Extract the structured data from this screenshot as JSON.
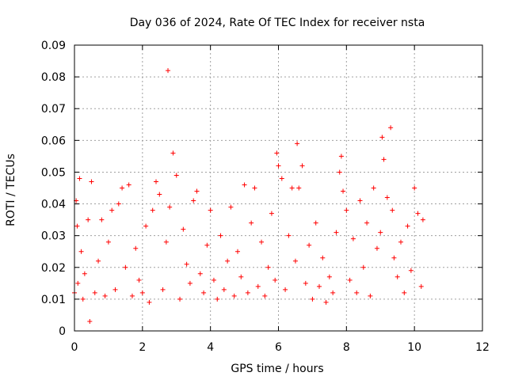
{
  "chart_data": {
    "type": "scatter",
    "title": "Day 036 of 2024, Rate Of TEC Index for receiver nsta",
    "xlabel": "GPS time / hours",
    "ylabel": "ROTI / TECUs",
    "xlim": [
      0,
      12
    ],
    "ylim": [
      0,
      0.09
    ],
    "xticks": [
      0,
      2,
      4,
      6,
      8,
      10,
      12
    ],
    "yticks": [
      0,
      0.01,
      0.02,
      0.03,
      0.04,
      0.05,
      0.06,
      0.07,
      0.08,
      0.09
    ],
    "xtick_labels": [
      "0",
      "2",
      "4",
      "6",
      "8",
      "10",
      "12"
    ],
    "ytick_labels": [
      "0",
      "0.01",
      "0.02",
      "0.03",
      "0.04",
      "0.05",
      "0.06",
      "0.07",
      "0.08",
      "0.09"
    ],
    "grid": true,
    "marker": "+",
    "color": "#ff0000",
    "series": [
      {
        "name": "ROTI",
        "x": [
          0.0,
          0.05,
          0.08,
          0.1,
          0.15,
          0.2,
          0.25,
          0.3,
          0.4,
          0.45,
          0.5,
          0.6,
          0.7,
          0.8,
          0.9,
          1.0,
          1.1,
          1.2,
          1.3,
          1.4,
          1.5,
          1.6,
          1.7,
          1.8,
          1.9,
          2.0,
          2.1,
          2.2,
          2.3,
          2.4,
          2.5,
          2.6,
          2.7,
          2.75,
          2.8,
          2.9,
          3.0,
          3.1,
          3.2,
          3.3,
          3.4,
          3.5,
          3.6,
          3.7,
          3.8,
          3.9,
          4.0,
          4.1,
          4.2,
          4.3,
          4.4,
          4.5,
          4.6,
          4.7,
          4.8,
          4.9,
          5.0,
          5.1,
          5.2,
          5.3,
          5.4,
          5.5,
          5.6,
          5.7,
          5.8,
          5.9,
          5.95,
          6.0,
          6.1,
          6.2,
          6.3,
          6.4,
          6.5,
          6.55,
          6.6,
          6.7,
          6.8,
          6.9,
          7.0,
          7.1,
          7.2,
          7.3,
          7.4,
          7.5,
          7.6,
          7.7,
          7.8,
          7.85,
          7.9,
          8.0,
          8.1,
          8.2,
          8.3,
          8.4,
          8.5,
          8.6,
          8.7,
          8.8,
          8.9,
          9.0,
          9.05,
          9.1,
          9.2,
          9.3,
          9.35,
          9.4,
          9.5,
          9.6,
          9.7,
          9.8,
          9.9,
          10.0,
          10.1,
          10.2,
          10.25
        ],
        "y": [
          0.012,
          0.041,
          0.033,
          0.015,
          0.048,
          0.025,
          0.01,
          0.018,
          0.035,
          0.003,
          0.047,
          0.012,
          0.022,
          0.035,
          0.011,
          0.028,
          0.038,
          0.013,
          0.04,
          0.045,
          0.02,
          0.046,
          0.011,
          0.026,
          0.016,
          0.012,
          0.033,
          0.009,
          0.038,
          0.047,
          0.043,
          0.013,
          0.028,
          0.082,
          0.039,
          0.056,
          0.049,
          0.01,
          0.032,
          0.021,
          0.015,
          0.041,
          0.044,
          0.018,
          0.012,
          0.027,
          0.038,
          0.016,
          0.01,
          0.03,
          0.013,
          0.022,
          0.039,
          0.011,
          0.025,
          0.017,
          0.046,
          0.012,
          0.034,
          0.045,
          0.014,
          0.028,
          0.011,
          0.02,
          0.037,
          0.016,
          0.056,
          0.052,
          0.048,
          0.013,
          0.03,
          0.045,
          0.022,
          0.059,
          0.045,
          0.052,
          0.015,
          0.027,
          0.01,
          0.034,
          0.014,
          0.023,
          0.009,
          0.017,
          0.012,
          0.031,
          0.05,
          0.055,
          0.044,
          0.038,
          0.016,
          0.029,
          0.012,
          0.041,
          0.02,
          0.034,
          0.011,
          0.045,
          0.026,
          0.031,
          0.061,
          0.054,
          0.042,
          0.064,
          0.038,
          0.023,
          0.017,
          0.028,
          0.012,
          0.033,
          0.019,
          0.045,
          0.037,
          0.014,
          0.035
        ]
      }
    ]
  }
}
